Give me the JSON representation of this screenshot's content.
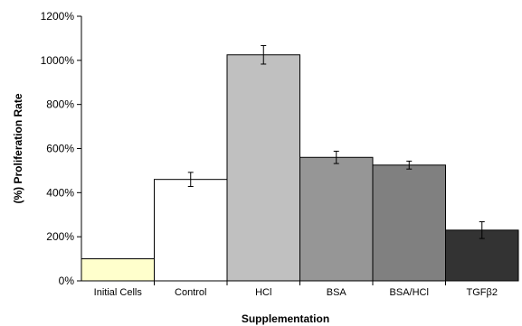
{
  "chart_data": {
    "type": "bar",
    "title": "",
    "xlabel": "Supplementation",
    "ylabel": "(%) Proliferation Rate",
    "categories": [
      "Initial Cells",
      "Control",
      "HCl",
      "BSA",
      "BSA/HCl",
      "TGFβ2"
    ],
    "values": [
      100,
      460,
      1025,
      560,
      525,
      230
    ],
    "errors": [
      0,
      32,
      42,
      28,
      18,
      38
    ],
    "bar_colors": [
      "#ffffcc",
      "#ffffff",
      "#c0c0c0",
      "#969696",
      "#808080",
      "#333333"
    ],
    "ylim": [
      0,
      1200
    ],
    "yticks": [
      0,
      200,
      400,
      600,
      800,
      1000,
      1200
    ],
    "ytick_labels": [
      "0%",
      "200%",
      "400%",
      "600%",
      "800%",
      "1000%",
      "1200%"
    ],
    "grid": false,
    "legend": "none"
  }
}
